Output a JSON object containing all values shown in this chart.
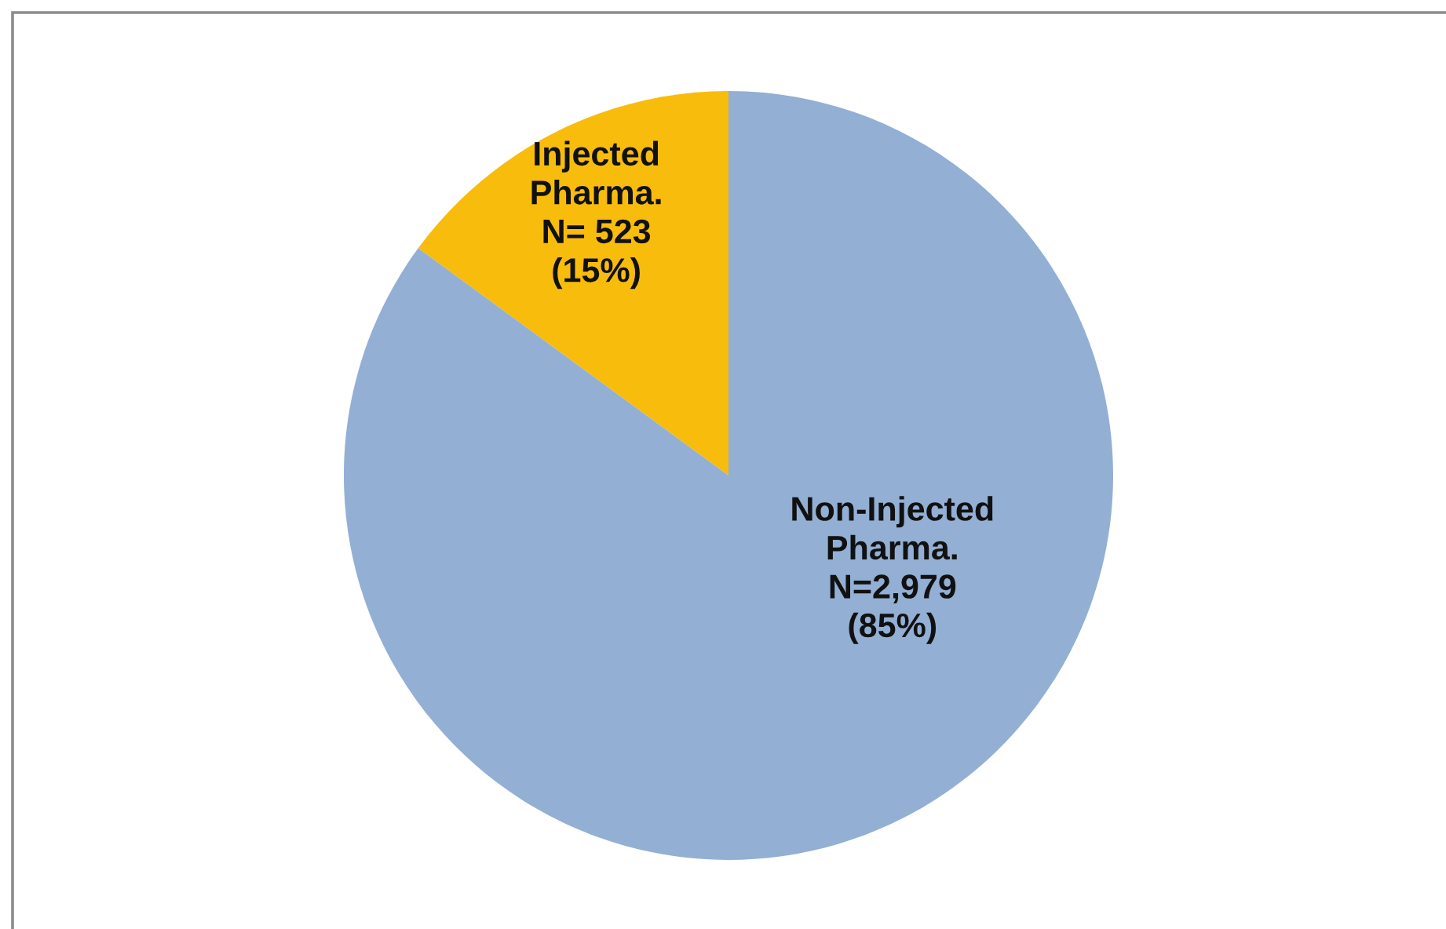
{
  "chart_data": {
    "type": "pie",
    "categories": [
      "Injected Pharma.",
      "Non-Injected Pharma."
    ],
    "values": [
      523,
      2979
    ],
    "colors": [
      "#f8bc0c",
      "#93afd4"
    ],
    "value_labels": [
      "N= 523 (15%)",
      "N=2,979 (85%)"
    ]
  }
}
